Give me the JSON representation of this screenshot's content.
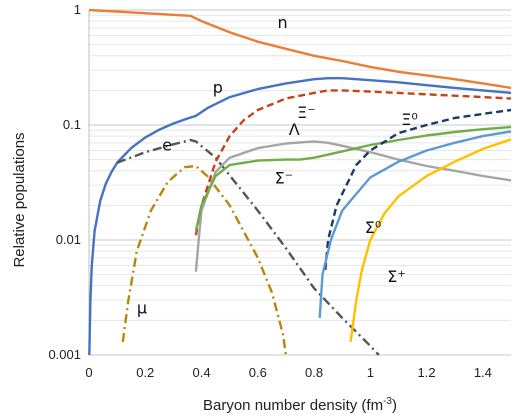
{
  "chart_data": {
    "type": "line",
    "title": "",
    "xlabel": "Baryon number density (fm",
    "xlabel_sup": "-3",
    "xlabel_end": ")",
    "ylabel": "Relative populations",
    "xlim": [
      0,
      1.5
    ],
    "ylim": [
      0.001,
      1
    ],
    "yscale": "log",
    "grid": "horizontal, minor log lines",
    "x_ticks": [
      "0",
      "0.2",
      "0.4",
      "0.6",
      "0.8",
      "1",
      "1.2",
      "1.4"
    ],
    "y_ticks": [
      "0.001",
      "0.01",
      "0.1",
      "1"
    ],
    "series": [
      {
        "name": "n",
        "label": "n",
        "color": "#ED7D31",
        "dash": "solid",
        "points": [
          [
            0,
            1
          ],
          [
            0.36,
            0.89
          ],
          [
            0.4,
            0.8
          ],
          [
            0.5,
            0.64
          ],
          [
            0.6,
            0.53
          ],
          [
            0.7,
            0.46
          ],
          [
            0.8,
            0.4
          ],
          [
            0.9,
            0.36
          ],
          [
            1.0,
            0.32
          ],
          [
            1.1,
            0.29
          ],
          [
            1.2,
            0.27
          ],
          [
            1.3,
            0.25
          ],
          [
            1.4,
            0.23
          ],
          [
            1.5,
            0.21
          ]
        ]
      },
      {
        "name": "p",
        "label": "p",
        "color": "#4472C4",
        "dash": "solid",
        "points": [
          [
            0.001,
            0.001
          ],
          [
            0.005,
            0.003
          ],
          [
            0.01,
            0.006
          ],
          [
            0.02,
            0.012
          ],
          [
            0.04,
            0.022
          ],
          [
            0.06,
            0.031
          ],
          [
            0.08,
            0.039
          ],
          [
            0.1,
            0.047
          ],
          [
            0.15,
            0.063
          ],
          [
            0.2,
            0.078
          ],
          [
            0.25,
            0.091
          ],
          [
            0.3,
            0.103
          ],
          [
            0.35,
            0.114
          ],
          [
            0.38,
            0.12
          ],
          [
            0.42,
            0.14
          ],
          [
            0.5,
            0.175
          ],
          [
            0.6,
            0.205
          ],
          [
            0.7,
            0.23
          ],
          [
            0.8,
            0.25
          ],
          [
            0.85,
            0.255
          ],
          [
            0.9,
            0.255
          ],
          [
            1.0,
            0.245
          ],
          [
            1.1,
            0.235
          ],
          [
            1.2,
            0.222
          ],
          [
            1.3,
            0.21
          ],
          [
            1.4,
            0.2
          ],
          [
            1.5,
            0.19
          ]
        ]
      },
      {
        "name": "e",
        "label": "e",
        "color": "#555555",
        "dash": "dashdot",
        "points": [
          [
            0.1,
            0.047
          ],
          [
            0.2,
            0.058
          ],
          [
            0.3,
            0.068
          ],
          [
            0.36,
            0.074
          ],
          [
            0.38,
            0.072
          ],
          [
            0.45,
            0.052
          ],
          [
            0.6,
            0.018
          ],
          [
            0.7,
            0.0085
          ],
          [
            0.8,
            0.0038
          ],
          [
            0.9,
            0.0021
          ],
          [
            1.0,
            0.0012
          ],
          [
            1.03,
            0.001
          ]
        ]
      },
      {
        "name": "mu",
        "label": "μ",
        "color": "#B8860B",
        "dash": "dashdot",
        "points": [
          [
            0.12,
            0.0013
          ],
          [
            0.14,
            0.003
          ],
          [
            0.17,
            0.008
          ],
          [
            0.22,
            0.018
          ],
          [
            0.28,
            0.032
          ],
          [
            0.34,
            0.043
          ],
          [
            0.38,
            0.044
          ],
          [
            0.42,
            0.036
          ],
          [
            0.5,
            0.02
          ],
          [
            0.6,
            0.007
          ],
          [
            0.65,
            0.0035
          ],
          [
            0.69,
            0.0015
          ],
          [
            0.7,
            0.001
          ]
        ]
      },
      {
        "name": "Xi-",
        "label": "Ξ⁻",
        "color": "#C0461A",
        "dash": "dash",
        "points": [
          [
            0.38,
            0.011
          ],
          [
            0.4,
            0.02
          ],
          [
            0.45,
            0.048
          ],
          [
            0.5,
            0.08
          ],
          [
            0.55,
            0.11
          ],
          [
            0.6,
            0.135
          ],
          [
            0.7,
            0.17
          ],
          [
            0.8,
            0.19
          ],
          [
            0.85,
            0.2
          ],
          [
            0.9,
            0.2
          ],
          [
            1.0,
            0.195
          ],
          [
            1.2,
            0.185
          ],
          [
            1.4,
            0.175
          ],
          [
            1.5,
            0.17
          ]
        ]
      },
      {
        "name": "Lambda",
        "label": "Λ",
        "color": "#A5A5A5",
        "dash": "solid",
        "points": [
          [
            0.38,
            0.0053
          ],
          [
            0.39,
            0.01
          ],
          [
            0.4,
            0.018
          ],
          [
            0.45,
            0.039
          ],
          [
            0.5,
            0.052
          ],
          [
            0.6,
            0.063
          ],
          [
            0.7,
            0.069
          ],
          [
            0.8,
            0.072
          ],
          [
            0.85,
            0.07
          ],
          [
            0.9,
            0.066
          ],
          [
            1.0,
            0.058
          ],
          [
            1.1,
            0.05
          ],
          [
            1.2,
            0.044
          ],
          [
            1.3,
            0.04
          ],
          [
            1.4,
            0.036
          ],
          [
            1.5,
            0.033
          ]
        ]
      },
      {
        "name": "Sigma-",
        "label": "Σ⁻",
        "color": "#70AD47",
        "dash": "solid",
        "points": [
          [
            0.38,
            0.012
          ],
          [
            0.4,
            0.02
          ],
          [
            0.45,
            0.036
          ],
          [
            0.5,
            0.045
          ],
          [
            0.6,
            0.049
          ],
          [
            0.7,
            0.05
          ],
          [
            0.75,
            0.05
          ],
          [
            0.8,
            0.052
          ],
          [
            0.9,
            0.059
          ],
          [
            1.0,
            0.067
          ],
          [
            1.1,
            0.074
          ],
          [
            1.2,
            0.081
          ],
          [
            1.3,
            0.087
          ],
          [
            1.4,
            0.092
          ],
          [
            1.5,
            0.096
          ]
        ]
      },
      {
        "name": "Xi0",
        "label": "Ξ⁰",
        "color": "#1F3864",
        "dash": "dash",
        "points": [
          [
            0.84,
            0.0055
          ],
          [
            0.85,
            0.01
          ],
          [
            0.88,
            0.02
          ],
          [
            0.95,
            0.045
          ],
          [
            1.0,
            0.06
          ],
          [
            1.1,
            0.085
          ],
          [
            1.2,
            0.1
          ],
          [
            1.3,
            0.115
          ],
          [
            1.4,
            0.125
          ],
          [
            1.5,
            0.135
          ]
        ]
      },
      {
        "name": "Sigma0",
        "label": "Σ⁰",
        "color": "#5B9BD5",
        "dash": "solid",
        "points": [
          [
            0.82,
            0.0021
          ],
          [
            0.83,
            0.005
          ],
          [
            0.86,
            0.01
          ],
          [
            0.9,
            0.018
          ],
          [
            1.0,
            0.035
          ],
          [
            1.1,
            0.048
          ],
          [
            1.2,
            0.06
          ],
          [
            1.3,
            0.07
          ],
          [
            1.4,
            0.08
          ],
          [
            1.5,
            0.088
          ]
        ]
      },
      {
        "name": "Sigma+",
        "label": "Σ⁺",
        "color": "#FFC000",
        "dash": "solid",
        "points": [
          [
            0.93,
            0.0013
          ],
          [
            0.95,
            0.003
          ],
          [
            0.97,
            0.0055
          ],
          [
            1.0,
            0.01
          ],
          [
            1.05,
            0.017
          ],
          [
            1.1,
            0.024
          ],
          [
            1.2,
            0.036
          ],
          [
            1.3,
            0.048
          ],
          [
            1.4,
            0.062
          ],
          [
            1.5,
            0.075
          ]
        ]
      }
    ]
  }
}
